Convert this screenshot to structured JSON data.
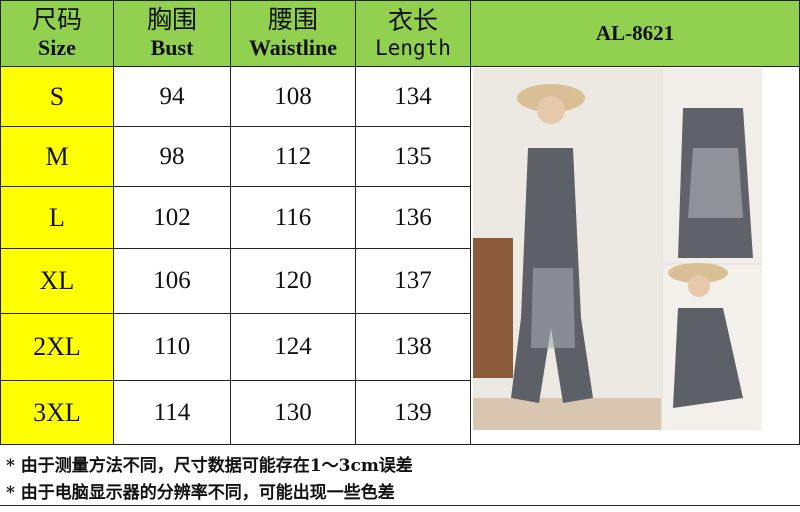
{
  "header": {
    "size": {
      "cn": "尺码",
      "en": "Size"
    },
    "bust": {
      "cn": "胸围",
      "en": "Bust"
    },
    "waist": {
      "cn": "腰围",
      "en": "Waistline"
    },
    "length": {
      "cn": "衣长",
      "en": "Length"
    },
    "model": "AL-8621"
  },
  "rows": [
    {
      "size": "S",
      "bust": "94",
      "waist": "108",
      "length": "134"
    },
    {
      "size": "M",
      "bust": "98",
      "waist": "112",
      "length": "135"
    },
    {
      "size": "L",
      "bust": "102",
      "waist": "116",
      "length": "136"
    },
    {
      "size": "XL",
      "bust": "106",
      "waist": "120",
      "length": "137"
    },
    {
      "size": "2XL",
      "bust": "110",
      "waist": "124",
      "length": "138"
    },
    {
      "size": "3XL",
      "bust": "114",
      "waist": "130",
      "length": "139"
    }
  ],
  "notes": [
    "* 由于测量方法不同，尺寸数据可能存在1～3cm误差",
    "* 由于电脑显示器的分辨率不同，可能出现一些色差"
  ],
  "colors": {
    "header": "#92d050",
    "size_col": "#ffff00"
  }
}
